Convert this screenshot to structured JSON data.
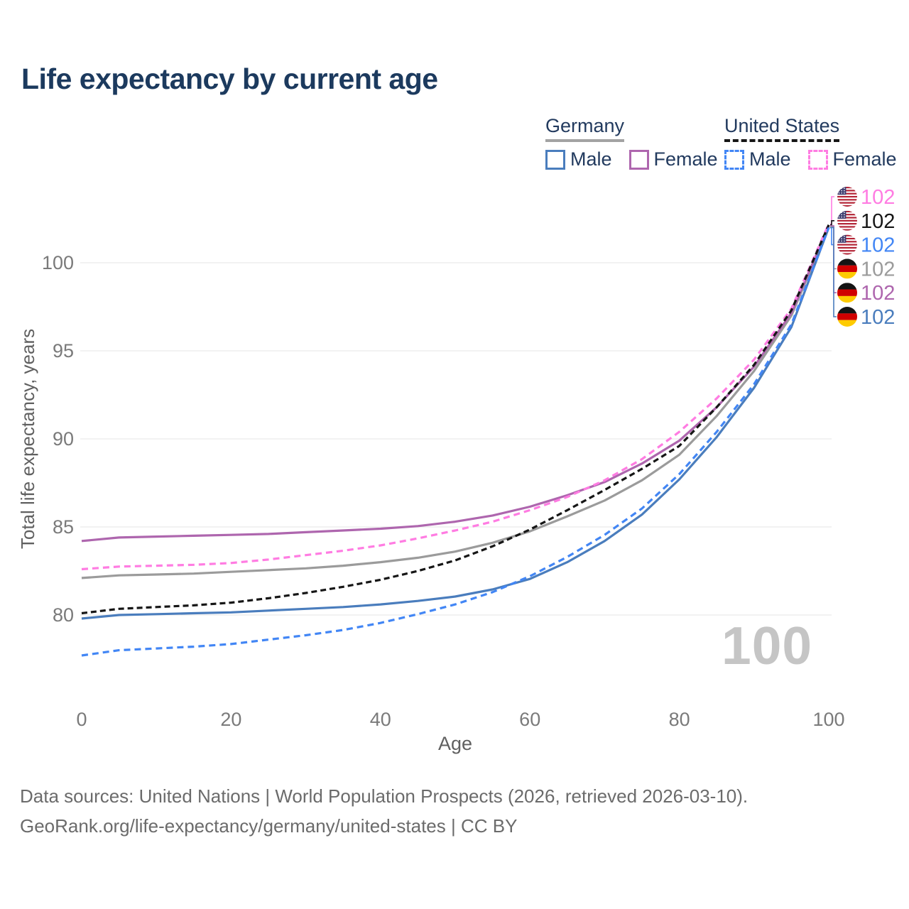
{
  "title": "Life expectancy by current age",
  "legend": {
    "groups": [
      {
        "label": "Germany",
        "line_style": "solid",
        "underline_color": "#a3a3a3",
        "items": [
          {
            "label": "Male",
            "color": "#4a7dbd"
          },
          {
            "label": "Female",
            "color": "#ae66ae"
          }
        ]
      },
      {
        "label": "United States",
        "line_style": "dashed",
        "underline_color": "#161616",
        "items": [
          {
            "label": "Male",
            "color": "#4286f5"
          },
          {
            "label": "Female",
            "color": "#ff7ce2"
          }
        ]
      }
    ]
  },
  "watermark": "100",
  "footer": {
    "line1": "Data sources: United Nations | World Population Prospects (2026, retrieved 2026-03-10).",
    "line2": "GeoRank.org/life-expectancy/germany/united-states | CC BY"
  },
  "chart_data": {
    "type": "line",
    "title": "Life expectancy by current age",
    "xlabel": "Age",
    "ylabel": "Total life expectancy, years",
    "xlim": [
      0,
      100
    ],
    "ylim": [
      77,
      103
    ],
    "x_ticks": [
      0,
      20,
      40,
      60,
      80,
      100
    ],
    "y_ticks": [
      80,
      85,
      90,
      95,
      100
    ],
    "grid": "horizontal",
    "legend_position": "top-right",
    "x": [
      0,
      5,
      10,
      15,
      20,
      25,
      30,
      35,
      40,
      45,
      50,
      55,
      60,
      65,
      70,
      75,
      80,
      85,
      90,
      95,
      100
    ],
    "series": [
      {
        "name": "United States Female",
        "country": "United States",
        "sex": "Female",
        "flag": "us",
        "color": "#ff7ce2",
        "dash": true,
        "end_label": "102",
        "values": [
          82.6,
          82.75,
          82.8,
          82.85,
          82.95,
          83.15,
          83.4,
          83.65,
          83.95,
          84.35,
          84.8,
          85.3,
          85.95,
          86.7,
          87.65,
          88.85,
          90.4,
          92.3,
          94.5,
          97.4,
          102.2
        ]
      },
      {
        "name": "United States",
        "country": "United States",
        "sex": "Both",
        "flag": "us",
        "color": "#161616",
        "dash": true,
        "end_label": "102",
        "values": [
          80.1,
          80.35,
          80.45,
          80.55,
          80.7,
          80.95,
          81.25,
          81.6,
          82.0,
          82.5,
          83.1,
          83.9,
          84.85,
          85.95,
          87.1,
          88.3,
          89.6,
          91.8,
          94.2,
          97.3,
          102.15
        ]
      },
      {
        "name": "United States Male",
        "country": "United States",
        "sex": "Male",
        "flag": "us",
        "color": "#4286f5",
        "dash": true,
        "end_label": "102",
        "values": [
          77.7,
          78.0,
          78.1,
          78.2,
          78.35,
          78.6,
          78.85,
          79.15,
          79.55,
          80.05,
          80.6,
          81.3,
          82.2,
          83.3,
          84.55,
          86.05,
          88.0,
          90.4,
          93.1,
          96.5,
          102.0
        ]
      },
      {
        "name": "Germany",
        "country": "Germany",
        "sex": "Both",
        "flag": "de",
        "color": "#9b9b9b",
        "dash": false,
        "end_label": "102",
        "values": [
          82.1,
          82.25,
          82.3,
          82.35,
          82.45,
          82.55,
          82.65,
          82.8,
          83.0,
          83.25,
          83.6,
          84.1,
          84.75,
          85.6,
          86.5,
          87.65,
          89.1,
          91.3,
          93.85,
          97.0,
          102.05
        ]
      },
      {
        "name": "Germany Female",
        "country": "Germany",
        "sex": "Female",
        "flag": "de",
        "color": "#ae66ae",
        "dash": false,
        "end_label": "102",
        "values": [
          84.2,
          84.4,
          84.45,
          84.5,
          84.55,
          84.6,
          84.7,
          84.8,
          84.9,
          85.05,
          85.3,
          85.65,
          86.15,
          86.8,
          87.55,
          88.6,
          89.9,
          91.8,
          94.1,
          97.15,
          102.1
        ]
      },
      {
        "name": "Germany Male",
        "country": "Germany",
        "sex": "Male",
        "flag": "de",
        "color": "#4a7dbd",
        "dash": false,
        "end_label": "102",
        "values": [
          79.8,
          80.0,
          80.05,
          80.1,
          80.15,
          80.25,
          80.35,
          80.45,
          80.6,
          80.8,
          81.05,
          81.45,
          82.05,
          83.0,
          84.2,
          85.7,
          87.7,
          90.1,
          92.9,
          96.35,
          102.0
        ]
      }
    ]
  }
}
